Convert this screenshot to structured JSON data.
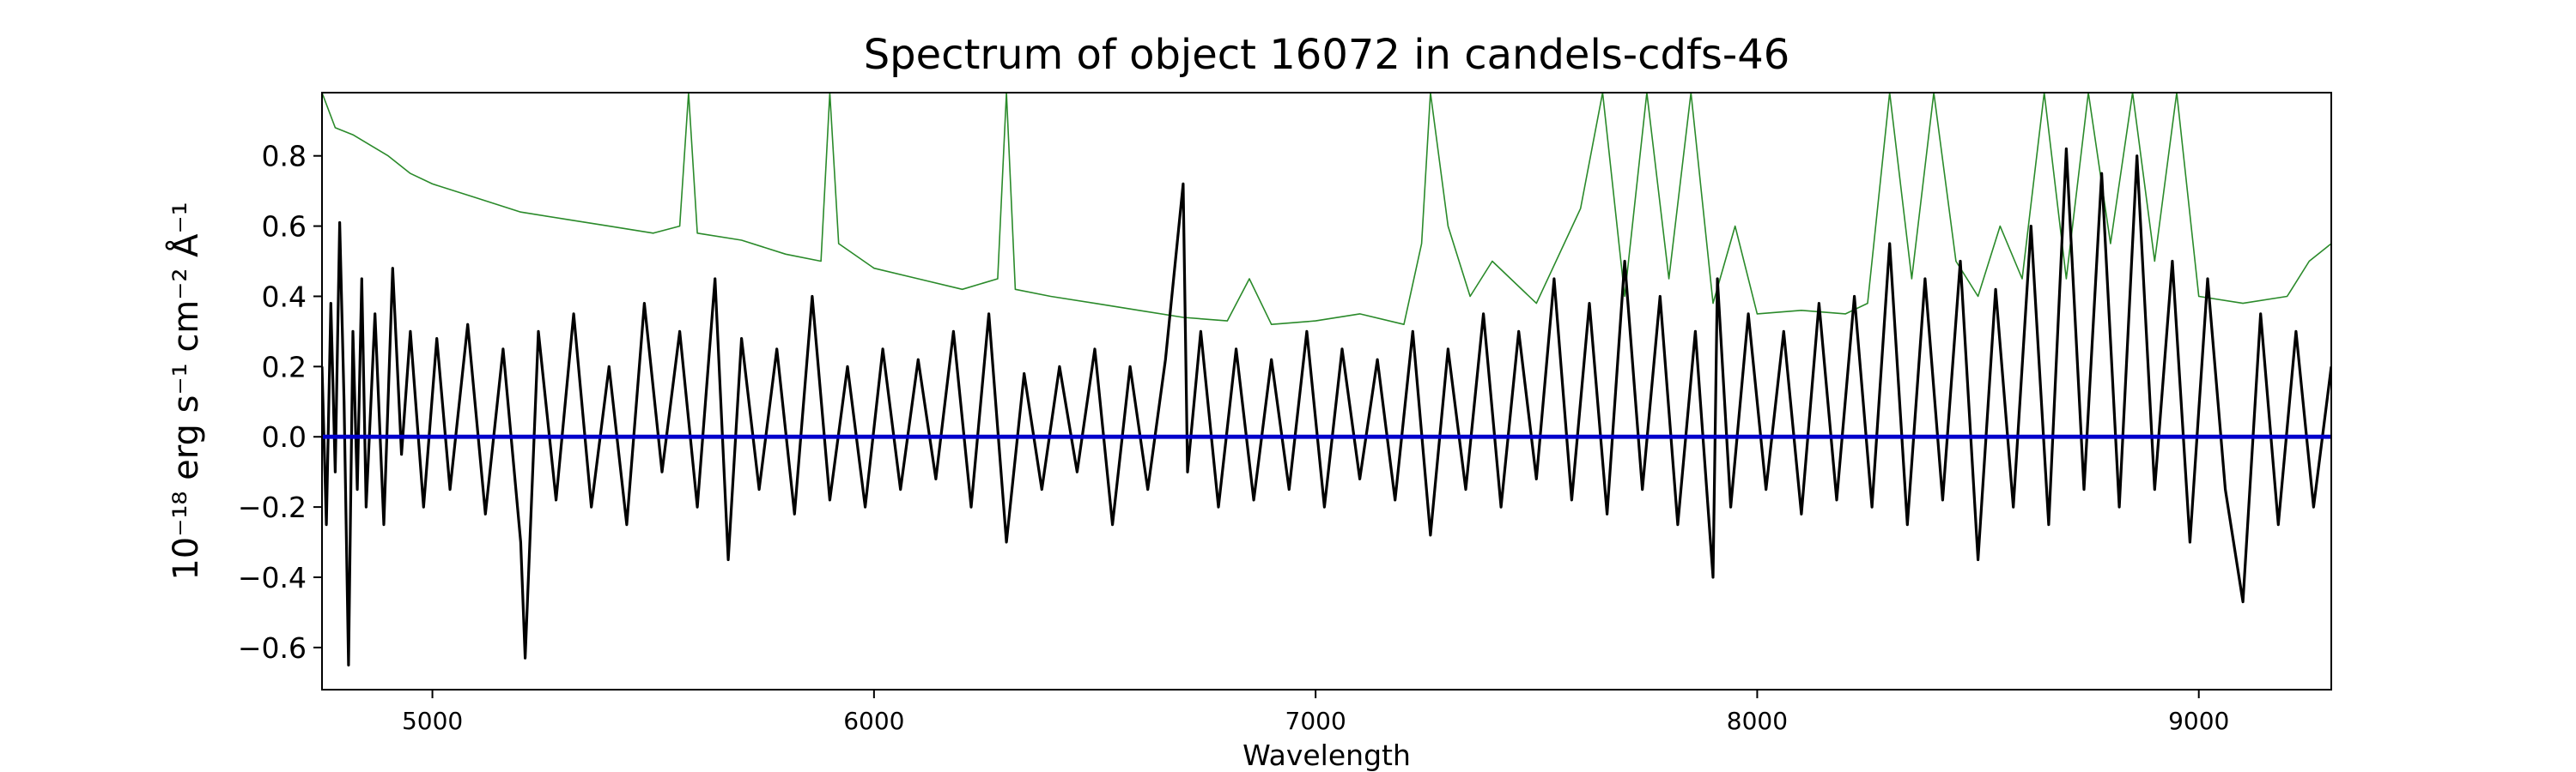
{
  "chart_data": {
    "type": "line",
    "title": "Spectrum of object 16072 in candels-cdfs-46",
    "xlabel": "Wavelength",
    "ylabel": "10⁻¹⁸ erg s⁻¹ cm⁻² Å⁻¹",
    "xlim": [
      4750,
      9300
    ],
    "ylim": [
      -0.72,
      0.98
    ],
    "x_ticks": [
      5000,
      6000,
      7000,
      8000,
      9000
    ],
    "y_ticks": [
      -0.6,
      -0.4,
      -0.2,
      0.0,
      0.2,
      0.4,
      0.6,
      0.8
    ],
    "y_tick_labels": [
      "−0.6",
      "−0.4",
      "−0.2",
      "0.0",
      "0.2",
      "0.4",
      "0.6",
      "0.8"
    ],
    "grid": false,
    "series": [
      {
        "role": "flux",
        "color": "#000000",
        "x": [
          4750,
          4760,
          4770,
          4780,
          4790,
          4800,
          4810,
          4820,
          4830,
          4840,
          4850,
          4870,
          4890,
          4910,
          4930,
          4950,
          4980,
          5010,
          5040,
          5080,
          5120,
          5160,
          5200,
          5210,
          5240,
          5280,
          5320,
          5360,
          5400,
          5440,
          5480,
          5520,
          5560,
          5600,
          5640,
          5670,
          5700,
          5740,
          5780,
          5820,
          5860,
          5900,
          5940,
          5980,
          6020,
          6060,
          6100,
          6140,
          6180,
          6220,
          6260,
          6300,
          6340,
          6380,
          6420,
          6460,
          6500,
          6540,
          6580,
          6620,
          6660,
          6700,
          6710,
          6740,
          6780,
          6820,
          6860,
          6900,
          6940,
          6980,
          7020,
          7060,
          7100,
          7140,
          7180,
          7220,
          7260,
          7300,
          7340,
          7380,
          7420,
          7460,
          7500,
          7540,
          7580,
          7620,
          7660,
          7700,
          7740,
          7780,
          7820,
          7860,
          7900,
          7910,
          7940,
          7980,
          8020,
          8060,
          8100,
          8140,
          8180,
          8220,
          8260,
          8300,
          8340,
          8380,
          8420,
          8460,
          8500,
          8540,
          8580,
          8620,
          8660,
          8700,
          8740,
          8780,
          8820,
          8860,
          8900,
          8940,
          8980,
          9020,
          9060,
          9100,
          9140,
          9180,
          9220,
          9260,
          9300
        ],
        "y": [
          0.2,
          -0.25,
          0.38,
          -0.1,
          0.61,
          0.1,
          -0.65,
          0.3,
          -0.15,
          0.45,
          -0.2,
          0.35,
          -0.25,
          0.48,
          -0.05,
          0.3,
          -0.2,
          0.28,
          -0.15,
          0.32,
          -0.22,
          0.25,
          -0.3,
          -0.63,
          0.3,
          -0.18,
          0.35,
          -0.2,
          0.2,
          -0.25,
          0.38,
          -0.1,
          0.3,
          -0.2,
          0.45,
          -0.35,
          0.28,
          -0.15,
          0.25,
          -0.22,
          0.4,
          -0.18,
          0.2,
          -0.2,
          0.25,
          -0.15,
          0.22,
          -0.12,
          0.3,
          -0.2,
          0.35,
          -0.3,
          0.18,
          -0.15,
          0.2,
          -0.1,
          0.25,
          -0.25,
          0.2,
          -0.15,
          0.22,
          0.72,
          -0.1,
          0.3,
          -0.2,
          0.25,
          -0.18,
          0.22,
          -0.15,
          0.3,
          -0.2,
          0.25,
          -0.12,
          0.22,
          -0.18,
          0.3,
          -0.28,
          0.25,
          -0.15,
          0.35,
          -0.2,
          0.3,
          -0.12,
          0.45,
          -0.18,
          0.38,
          -0.22,
          0.5,
          -0.15,
          0.4,
          -0.25,
          0.3,
          -0.4,
          0.45,
          -0.2,
          0.35,
          -0.15,
          0.3,
          -0.22,
          0.38,
          -0.18,
          0.4,
          -0.2,
          0.55,
          -0.25,
          0.45,
          -0.18,
          0.5,
          -0.35,
          0.42,
          -0.2,
          0.6,
          -0.25,
          0.82,
          -0.15,
          0.75,
          -0.2,
          0.8,
          -0.15,
          0.5,
          -0.3,
          0.45,
          -0.15,
          -0.47,
          0.35,
          -0.25,
          0.3,
          -0.2,
          0.2
        ],
        "linewidth": 2
      },
      {
        "role": "error",
        "color": "#2a8a2a",
        "x": [
          4750,
          4780,
          4820,
          4860,
          4900,
          4950,
          5000,
          5100,
          5200,
          5300,
          5400,
          5500,
          5560,
          5580,
          5600,
          5700,
          5800,
          5880,
          5900,
          5920,
          6000,
          6100,
          6200,
          6280,
          6300,
          6320,
          6400,
          6500,
          6600,
          6700,
          6800,
          6850,
          6900,
          7000,
          7100,
          7200,
          7240,
          7260,
          7300,
          7350,
          7400,
          7500,
          7600,
          7650,
          7700,
          7750,
          7800,
          7850,
          7900,
          7950,
          8000,
          8100,
          8200,
          8250,
          8300,
          8350,
          8400,
          8450,
          8500,
          8550,
          8600,
          8650,
          8700,
          8750,
          8800,
          8850,
          8900,
          8950,
          9000,
          9100,
          9200,
          9250,
          9300
        ],
        "y": [
          0.98,
          0.88,
          0.86,
          0.83,
          0.8,
          0.75,
          0.72,
          0.68,
          0.64,
          0.62,
          0.6,
          0.58,
          0.6,
          0.98,
          0.58,
          0.56,
          0.52,
          0.5,
          0.98,
          0.55,
          0.48,
          0.45,
          0.42,
          0.45,
          0.98,
          0.42,
          0.4,
          0.38,
          0.36,
          0.34,
          0.33,
          0.45,
          0.32,
          0.33,
          0.35,
          0.32,
          0.55,
          0.98,
          0.6,
          0.4,
          0.5,
          0.38,
          0.65,
          0.98,
          0.4,
          0.98,
          0.45,
          0.98,
          0.38,
          0.6,
          0.35,
          0.36,
          0.35,
          0.38,
          0.98,
          0.45,
          0.98,
          0.5,
          0.4,
          0.6,
          0.45,
          0.98,
          0.45,
          0.98,
          0.55,
          0.98,
          0.5,
          0.98,
          0.4,
          0.38,
          0.4,
          0.5,
          0.55
        ],
        "linewidth": 1
      },
      {
        "role": "zero",
        "color": "#0000cc",
        "x": [
          4750,
          9300
        ],
        "y": [
          0.0,
          0.0
        ],
        "linewidth": 3
      }
    ]
  }
}
